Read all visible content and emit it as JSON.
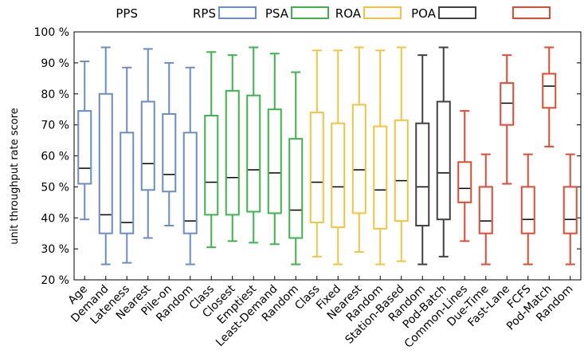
{
  "chart_data": {
    "type": "boxplot",
    "ylabel": "unit throughput rate score",
    "ylim": [
      20,
      100
    ],
    "yticks": [
      20,
      30,
      40,
      50,
      60,
      70,
      80,
      90,
      100
    ],
    "ytick_labels": [
      "20 %",
      "30 %",
      "40 %",
      "50 %",
      "60 %",
      "70 %",
      "80 %",
      "90 %",
      "100 %"
    ],
    "legend_position": "top, outside plot",
    "groups": [
      {
        "name": "PPS",
        "color": "#ffffff"
      },
      {
        "name": "RPS",
        "color": "#6a8cc8"
      },
      {
        "name": "PSA",
        "color": "#3cb44b"
      },
      {
        "name": "ROA",
        "color": "#f2c440"
      },
      {
        "name": "POA",
        "color": "#404040"
      },
      {
        "name": "",
        "color": "#e04a32"
      }
    ],
    "categories": [
      "Age",
      "Demand",
      "Lateness",
      "Nearest",
      "Pile-on",
      "Random",
      "Class",
      "Closest",
      "Emptiest",
      "Least-Demand",
      "Random",
      "Class",
      "Fixed",
      "Nearest",
      "Random",
      "Station-Based",
      "Random",
      "Pod-Batch",
      "Common-Lines",
      "Due-Time",
      "Fast-Lane",
      "FCFS",
      "Pod-Match",
      "Random"
    ],
    "boxes": [
      {
        "group": 1,
        "min": 39.5,
        "q1": 51,
        "median": 56,
        "q3": 74.5,
        "max": 90.5
      },
      {
        "group": 1,
        "min": 25,
        "q1": 35,
        "median": 41,
        "q3": 80,
        "max": 95
      },
      {
        "group": 1,
        "min": 25.5,
        "q1": 35,
        "median": 38.5,
        "q3": 67.5,
        "max": 88.5
      },
      {
        "group": 1,
        "min": 33.5,
        "q1": 49,
        "median": 57.5,
        "q3": 77.5,
        "max": 94.5
      },
      {
        "group": 1,
        "min": 37.5,
        "q1": 48.5,
        "median": 54,
        "q3": 73.5,
        "max": 90
      },
      {
        "group": 1,
        "min": 25,
        "q1": 35,
        "median": 39,
        "q3": 67.5,
        "max": 88.5
      },
      {
        "group": 2,
        "min": 30.5,
        "q1": 41,
        "median": 51.5,
        "q3": 73,
        "max": 93.5
      },
      {
        "group": 2,
        "min": 32.5,
        "q1": 41,
        "median": 53,
        "q3": 81,
        "max": 92.5
      },
      {
        "group": 2,
        "min": 32,
        "q1": 42,
        "median": 55.5,
        "q3": 79.5,
        "max": 95
      },
      {
        "group": 2,
        "min": 31.5,
        "q1": 41.5,
        "median": 54.5,
        "q3": 75,
        "max": 93
      },
      {
        "group": 2,
        "min": 25,
        "q1": 33.5,
        "median": 42.5,
        "q3": 65.5,
        "max": 87
      },
      {
        "group": 3,
        "min": 27.5,
        "q1": 38.5,
        "median": 51.5,
        "q3": 74,
        "max": 94
      },
      {
        "group": 3,
        "min": 25,
        "q1": 37,
        "median": 50,
        "q3": 70.5,
        "max": 94
      },
      {
        "group": 3,
        "min": 29,
        "q1": 41.5,
        "median": 55.5,
        "q3": 76.5,
        "max": 95
      },
      {
        "group": 3,
        "min": 25,
        "q1": 36.5,
        "median": 49,
        "q3": 69.5,
        "max": 94
      },
      {
        "group": 3,
        "min": 26,
        "q1": 39,
        "median": 52,
        "q3": 71.5,
        "max": 95
      },
      {
        "group": 4,
        "min": 25,
        "q1": 37.5,
        "median": 50,
        "q3": 70.5,
        "max": 92.5
      },
      {
        "group": 4,
        "min": 27.5,
        "q1": 39.5,
        "median": 54.5,
        "q3": 77.5,
        "max": 95
      },
      {
        "group": 5,
        "min": 32.5,
        "q1": 45,
        "median": 49.5,
        "q3": 58,
        "max": 74.5
      },
      {
        "group": 5,
        "min": 25,
        "q1": 35,
        "median": 39,
        "q3": 50,
        "max": 60.5
      },
      {
        "group": 5,
        "min": 51,
        "q1": 70,
        "median": 77,
        "q3": 83.5,
        "max": 92.5
      },
      {
        "group": 5,
        "min": 25,
        "q1": 35,
        "median": 39.5,
        "q3": 50,
        "max": 60.5
      },
      {
        "group": 5,
        "min": 63,
        "q1": 75.5,
        "median": 82.5,
        "q3": 86.5,
        "max": 95
      },
      {
        "group": 5,
        "min": 25,
        "q1": 35,
        "median": 39.5,
        "q3": 50,
        "max": 60.5
      }
    ]
  }
}
